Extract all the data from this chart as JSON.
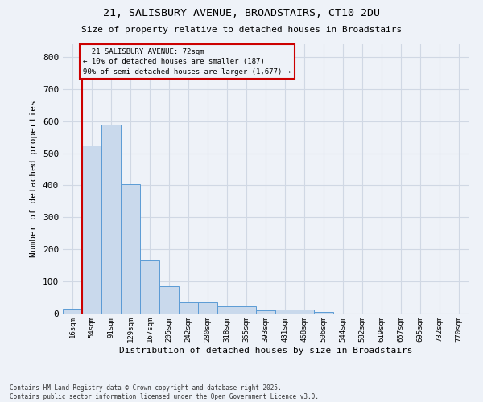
{
  "title_line1": "21, SALISBURY AVENUE, BROADSTAIRS, CT10 2DU",
  "title_line2": "Size of property relative to detached houses in Broadstairs",
  "xlabel": "Distribution of detached houses by size in Broadstairs",
  "ylabel": "Number of detached properties",
  "categories": [
    "16sqm",
    "54sqm",
    "91sqm",
    "129sqm",
    "167sqm",
    "205sqm",
    "242sqm",
    "280sqm",
    "318sqm",
    "355sqm",
    "393sqm",
    "431sqm",
    "468sqm",
    "506sqm",
    "544sqm",
    "582sqm",
    "619sqm",
    "657sqm",
    "695sqm",
    "732sqm",
    "770sqm"
  ],
  "values": [
    14,
    525,
    590,
    403,
    165,
    86,
    35,
    35,
    23,
    23,
    9,
    13,
    13,
    5,
    0,
    0,
    0,
    0,
    0,
    0,
    0
  ],
  "bar_color": "#c9d9ec",
  "bar_edgecolor": "#5b9bd5",
  "grid_color": "#d0d8e4",
  "bg_color": "#eef2f8",
  "property_line_x": 0.5,
  "annotation_text": "  21 SALISBURY AVENUE: 72sqm\n← 10% of detached houses are smaller (187)\n90% of semi-detached houses are larger (1,677) →",
  "annotation_box_color": "#cc0000",
  "footer_line1": "Contains HM Land Registry data © Crown copyright and database right 2025.",
  "footer_line2": "Contains public sector information licensed under the Open Government Licence v3.0.",
  "ylim": [
    0,
    840
  ],
  "yticks": [
    0,
    100,
    200,
    300,
    400,
    500,
    600,
    700,
    800
  ]
}
